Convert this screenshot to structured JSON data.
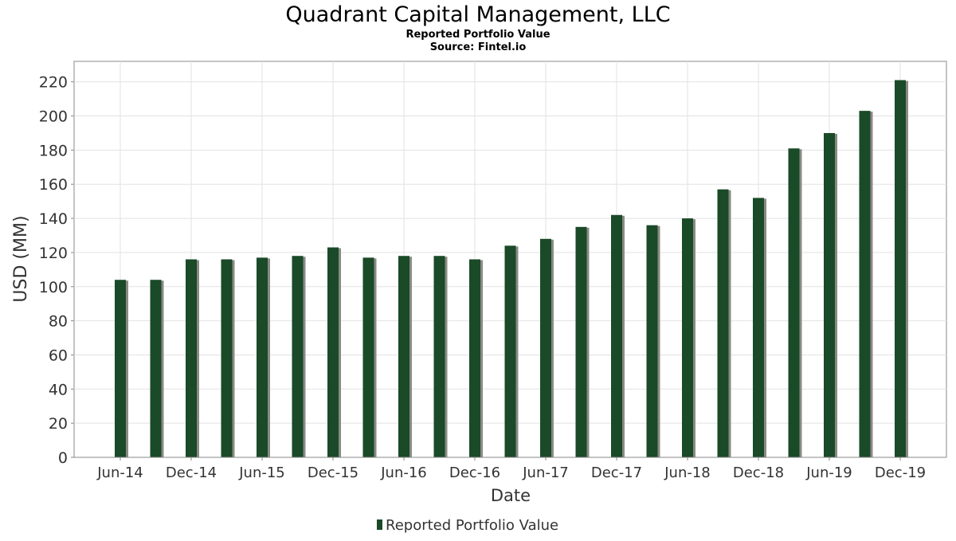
{
  "chart_data": {
    "type": "bar",
    "title": "Quadrant Capital Management, LLC",
    "subtitle": "Reported Portfolio Value",
    "source": "Source: Fintel.io",
    "xlabel": "Date",
    "ylabel": "USD (MM)",
    "ylim": [
      0,
      232
    ],
    "yticks": [
      0,
      20,
      40,
      60,
      80,
      100,
      120,
      140,
      160,
      180,
      200,
      220
    ],
    "x_tick_labels": [
      "Jun-14",
      "Dec-14",
      "Jun-15",
      "Dec-15",
      "Jun-16",
      "Dec-16",
      "Jun-17",
      "Dec-17",
      "Jun-18",
      "Dec-18",
      "Jun-19",
      "Dec-19"
    ],
    "categories": [
      "Jun-14",
      "Sep-14",
      "Dec-14",
      "Mar-15",
      "Jun-15",
      "Sep-15",
      "Dec-15",
      "Mar-16",
      "Jun-16",
      "Sep-16",
      "Dec-16",
      "Mar-17",
      "Jun-17",
      "Sep-17",
      "Dec-17",
      "Mar-18",
      "Jun-18",
      "Sep-18",
      "Dec-18",
      "Mar-19",
      "Jun-19",
      "Sep-19",
      "Dec-19"
    ],
    "series": [
      {
        "name": "Reported Portfolio Value",
        "color": "#1a4a28",
        "values": [
          104,
          104,
          116,
          116,
          117,
          118,
          123,
          117,
          118,
          118,
          116,
          124,
          128,
          135,
          142,
          136,
          140,
          157,
          152,
          181,
          190,
          203,
          221
        ]
      }
    ],
    "grid": true,
    "legend": "bottom-center",
    "bar_shadow_color": "#8a8a84"
  }
}
